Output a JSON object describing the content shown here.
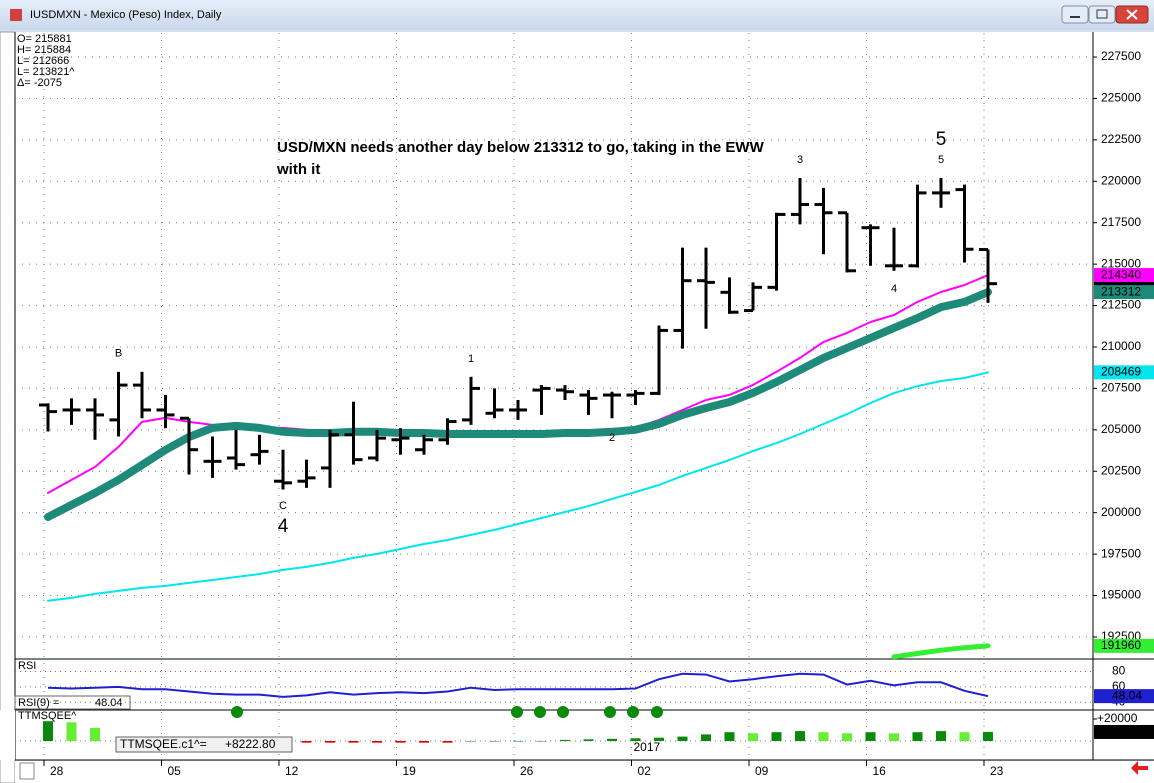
{
  "chart_data": {
    "type": "ohlc",
    "title": "IUSDMXN - Mexico (Peso) Index, Daily",
    "info_lines": [
      "O= 215881",
      "H= 215884",
      "L= 212666",
      "L= 213821^",
      "Δ=   -2075"
    ],
    "annotation_lines": [
      "USD/MXN needs another day below 213312 to go, taking in the EWW",
      "with it"
    ],
    "categories": [
      "28",
      null,
      null,
      null,
      null,
      "05",
      null,
      null,
      null,
      null,
      "12",
      null,
      null,
      null,
      null,
      "19",
      null,
      null,
      null,
      null,
      "26",
      null,
      null,
      null,
      null,
      "02",
      null,
      null,
      null,
      null,
      "09",
      null,
      null,
      null,
      null,
      "16",
      null,
      null,
      null,
      null,
      "23"
    ],
    "year_marker": {
      "label": "2017",
      "category_index": 25
    },
    "ylim": [
      191230,
      228950
    ],
    "yticks": [
      192500,
      195000,
      197500,
      200000,
      202500,
      205000,
      207500,
      210000,
      212500,
      215000,
      217500,
      220000,
      222500,
      225000,
      227500
    ],
    "grid": true,
    "bar_color": "#000000",
    "ohlc": {
      "open": [
        206500,
        206200,
        206200,
        205600,
        207700,
        206200,
        205700,
        203100,
        203300,
        203500,
        201900,
        201900,
        202700,
        204700,
        203300,
        204400,
        203800,
        204400,
        205600,
        206000,
        206200,
        207400,
        207400,
        207100,
        207100,
        207100,
        207200,
        211000,
        214000,
        213300,
        212200,
        213600,
        218000,
        218600,
        218100,
        217200,
        214900,
        214900,
        219300,
        219500,
        215881
      ],
      "high": [
        206600,
        206900,
        206900,
        208500,
        208500,
        207100,
        205700,
        204600,
        205000,
        204700,
        203800,
        203200,
        205000,
        206700,
        205000,
        205100,
        204700,
        205700,
        208200,
        207500,
        206800,
        207700,
        207700,
        207400,
        207300,
        207400,
        211300,
        216000,
        216000,
        214200,
        213900,
        218100,
        220200,
        219600,
        218100,
        217400,
        217200,
        219800,
        220200,
        219800,
        215884
      ],
      "low": [
        204900,
        205300,
        204400,
        204600,
        205700,
        205100,
        202300,
        202100,
        202600,
        202900,
        201400,
        201500,
        201500,
        202900,
        203100,
        203500,
        203500,
        204100,
        205300,
        205700,
        205600,
        205900,
        206800,
        205900,
        205700,
        206500,
        207100,
        209900,
        211100,
        212000,
        212200,
        213400,
        217400,
        215600,
        214500,
        214900,
        214600,
        214800,
        218400,
        215100,
        212666
      ],
      "close": [
        206100,
        206200,
        205900,
        207700,
        206200,
        205900,
        203800,
        203100,
        202900,
        203700,
        201800,
        202100,
        204700,
        203200,
        204500,
        204500,
        204400,
        205500,
        207500,
        206200,
        206200,
        207500,
        207300,
        206900,
        207100,
        207200,
        211000,
        214000,
        213900,
        212100,
        213600,
        218000,
        218600,
        218100,
        214600,
        217200,
        214900,
        219300,
        219300,
        215900,
        213821
      ]
    },
    "series": [
      {
        "color": "#00e5f0",
        "width": 2,
        "values": [
          194680,
          194860,
          195100,
          195280,
          195460,
          195580,
          195760,
          195940,
          196120,
          196300,
          196550,
          196730,
          196970,
          197270,
          197510,
          197810,
          198110,
          198350,
          198660,
          198960,
          199320,
          199680,
          200040,
          200400,
          200830,
          201250,
          201670,
          202220,
          202700,
          203180,
          203720,
          204200,
          204750,
          205350,
          205950,
          206620,
          207220,
          207640,
          207950,
          208130,
          208469
        ]
      },
      {
        "color": "#ff00ff",
        "width": 2,
        "values": [
          201190,
          201980,
          202760,
          203970,
          205480,
          205720,
          205480,
          205300,
          205240,
          205120,
          205120,
          205000,
          204880,
          204880,
          204880,
          204810,
          204810,
          204810,
          204810,
          204810,
          204810,
          204810,
          204880,
          204880,
          204940,
          205120,
          205600,
          206200,
          206800,
          207110,
          207710,
          208500,
          209340,
          210310,
          210850,
          211510,
          211930,
          212720,
          213320,
          213740,
          214340
        ]
      },
      {
        "color": "#1e8a7a",
        "width": 8,
        "values": [
          199740,
          200470,
          201190,
          201980,
          202880,
          203790,
          204570,
          205120,
          205240,
          205120,
          204880,
          204810,
          204810,
          204880,
          204880,
          204810,
          204810,
          204750,
          204750,
          204750,
          204750,
          204750,
          204810,
          204810,
          204880,
          205000,
          205360,
          205900,
          206320,
          206680,
          207230,
          207890,
          208610,
          209340,
          209940,
          210540,
          211150,
          211750,
          212410,
          212720,
          213312
        ]
      },
      {
        "color": "#33ee33",
        "width": 5,
        "values": [
          null,
          null,
          null,
          null,
          null,
          null,
          null,
          null,
          null,
          null,
          null,
          null,
          null,
          null,
          null,
          null,
          null,
          null,
          null,
          null,
          null,
          null,
          null,
          null,
          null,
          null,
          null,
          null,
          null,
          null,
          null,
          null,
          null,
          null,
          null,
          null,
          191300,
          191500,
          191700,
          191850,
          191960
        ]
      }
    ],
    "value_boxes": [
      {
        "value": 213821,
        "color": "#000000",
        "text_color": "#ffffff"
      },
      {
        "value": 214340,
        "color": "#ff00ff",
        "text_color": "#000000"
      },
      {
        "value": 213312,
        "color": "#1e8a7a",
        "text_color": "#ffffff"
      },
      {
        "value": 208469,
        "color": "#00e5f0",
        "text_color": "#000000"
      },
      {
        "value": 191960,
        "color": "#33ee33",
        "text_color": "#000000"
      }
    ],
    "wave_labels": [
      {
        "text": "B",
        "color": "#e00000",
        "at": [
          3,
          209600
        ],
        "large": false
      },
      {
        "text": "C",
        "color": "#e00000",
        "at": [
          10,
          200400
        ],
        "large": false
      },
      {
        "text": "4",
        "color": "#2020d0",
        "at": [
          10,
          199150
        ],
        "large": true
      },
      {
        "text": "1",
        "color": "#2020d0",
        "at": [
          18,
          209280
        ],
        "large": false
      },
      {
        "text": "2",
        "color": "#2020d0",
        "at": [
          24,
          204500
        ],
        "large": false
      },
      {
        "text": "3",
        "color": "#2020d0",
        "at": [
          32,
          221280
        ],
        "large": false
      },
      {
        "text": "5",
        "color": "#2020d0",
        "at": [
          38,
          222490
        ],
        "large": true
      },
      {
        "text": "5",
        "color": "#2020d0",
        "at": [
          38,
          221280
        ],
        "large": false
      },
      {
        "text": "4",
        "color": "#2020d0",
        "at": [
          36,
          213500
        ],
        "large": false
      }
    ],
    "rsi": {
      "title": "RSI",
      "readout_label": "RSI(9) =",
      "color": "#2020d0",
      "ylim": [
        30,
        95
      ],
      "yticks": [
        80,
        60,
        40
      ],
      "values": [
        59,
        58,
        59,
        60,
        57,
        57,
        54,
        51,
        50,
        50,
        47,
        49,
        53,
        50,
        52,
        53,
        52,
        54,
        59,
        56,
        57,
        57,
        57,
        57,
        57,
        58,
        70,
        77,
        76,
        67,
        70,
        74,
        77,
        76,
        63,
        68,
        62,
        66,
        66,
        55,
        48.04
      ]
    },
    "ttm": {
      "title": "TTMSQEE^",
      "readout_label": "TTMSQEE.c1^=",
      "readout": {
        "value": 8222.8,
        "label": "+8222.80"
      },
      "last_box": {
        "value": 8222.8,
        "label": "+8223"
      },
      "ylim": [
        -17270,
        27270
      ],
      "yticks": [
        {
          "value": 20000,
          "label": "+20000"
        }
      ],
      "colors": {
        "rising": "#0a8a0a",
        "falling": "#66ee33",
        "negative": "#e00000"
      },
      "values": [
        18000,
        17000,
        12000,
        0,
        0,
        0,
        0,
        0,
        0,
        0,
        -1500,
        -1500,
        -1500,
        -1500,
        -1500,
        -1500,
        -1500,
        -1500,
        0,
        0,
        0,
        0,
        1000,
        1500,
        2000,
        2500,
        3000,
        4000,
        6000,
        8000,
        7000,
        8000,
        9000,
        8000,
        7000,
        8000,
        7000,
        8000,
        9000,
        8000,
        8222.8
      ]
    }
  }
}
